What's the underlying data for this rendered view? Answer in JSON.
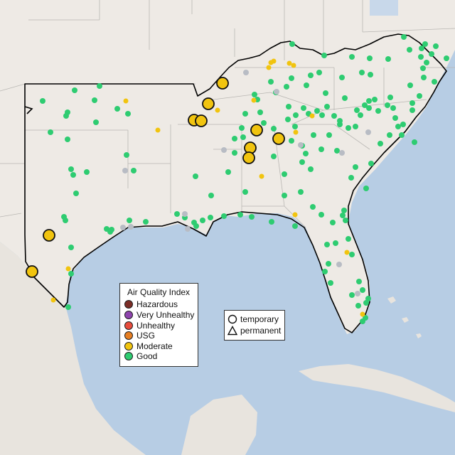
{
  "colors": {
    "ocean": "#b7cde4",
    "land": "#eeeae5",
    "mexico": "#e8e4de",
    "state_line": "#b9b7b3",
    "region_outline": "#000000",
    "good": "#2ecc71",
    "moderate": "#f1c40f",
    "usg": "#e67e22",
    "unhealthy": "#e74c3c",
    "very_unhealthy": "#8e44ad",
    "hazardous": "#7b2d26",
    "no_data": "#b8bcc4"
  },
  "legend": {
    "title": "Air Quality Index",
    "items": [
      {
        "label": "Hazardous",
        "color": "#7b2d26"
      },
      {
        "label": "Very Unhealthy",
        "color": "#8e44ad"
      },
      {
        "label": "Unhealthy",
        "color": "#e74c3c"
      },
      {
        "label": "USG",
        "color": "#e67e22"
      },
      {
        "label": "Moderate",
        "color": "#f1c40f"
      },
      {
        "label": "Good",
        "color": "#2ecc71"
      }
    ]
  },
  "monitor_type_legend": {
    "items": [
      {
        "label": "temporary",
        "icon": "circle-icon"
      },
      {
        "label": "permanent",
        "icon": "triangle-icon"
      }
    ]
  },
  "chart_data": {
    "type": "scatter",
    "title": "",
    "xlabel": "",
    "ylabel": "",
    "series": [
      {
        "name": "Moderate",
        "values": [
          [
            69,
            331
          ],
          [
            45,
            382
          ],
          [
            273,
            169
          ],
          [
            283,
            170
          ],
          [
            293,
            146
          ],
          [
            313,
            117
          ],
          [
            361,
            183
          ],
          [
            392,
            195
          ],
          [
            352,
            208
          ],
          [
            350,
            222
          ]
        ]
      }
    ]
  }
}
